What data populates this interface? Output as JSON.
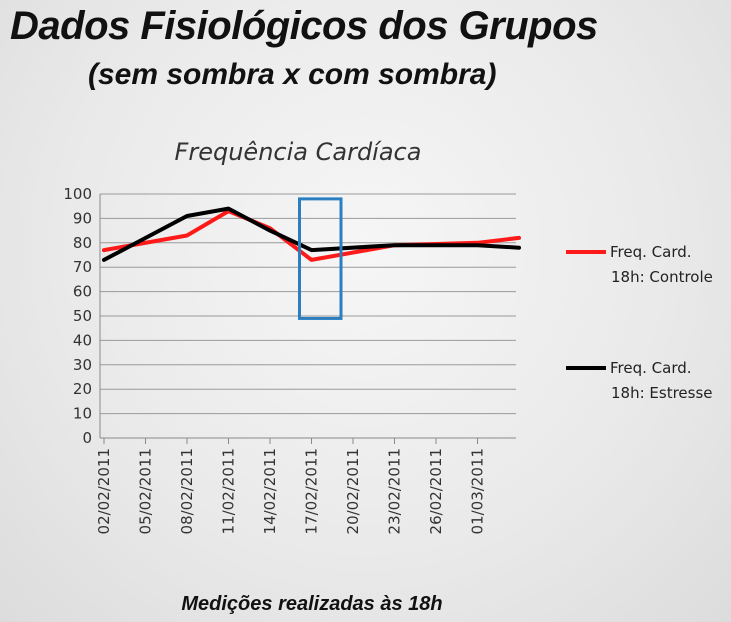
{
  "slide": {
    "title": "Dados Fisiológicos dos Grupos",
    "subtitle": "(sem sombra x com sombra)"
  },
  "chart_data": {
    "type": "line",
    "title": "Frequência Cardíaca",
    "xlabel": "Medições realizadas às 18h",
    "ylabel": "",
    "ylim": [
      0,
      100
    ],
    "yticks": [
      0,
      10,
      20,
      30,
      40,
      50,
      60,
      70,
      80,
      90,
      100
    ],
    "categories": [
      "02/02/2011",
      "05/02/2011",
      "08/02/2011",
      "11/02/2011",
      "14/02/2011",
      "17/02/2011",
      "20/02/2011",
      "23/02/2011",
      "26/02/2011",
      "01/03/2011"
    ],
    "x": [
      "02/02/2011",
      "08/02/2011",
      "11/02/2011",
      "14/02/2011",
      "17/02/2011",
      "23/02/2011",
      "01/03/2011",
      "04/03/2011"
    ],
    "series": [
      {
        "name_lines": [
          "Freq. Card.",
          "18h: Controle"
        ],
        "color": "#ff1a1a",
        "values": [
          77,
          83,
          93,
          86,
          73,
          79,
          80,
          82
        ]
      },
      {
        "name_lines": [
          "Freq. Card.",
          "18h: Estresse"
        ],
        "color": "#000000",
        "values": [
          73,
          91,
          94,
          85,
          77,
          79,
          79,
          78
        ]
      }
    ],
    "grid": true,
    "legend_position": "right",
    "annotation": {
      "type": "highlight-box",
      "color": "#2b7fc1",
      "x_from": "17/02/2011",
      "x_to": "20/02/2011",
      "y_from": 49,
      "y_to": 98
    }
  }
}
